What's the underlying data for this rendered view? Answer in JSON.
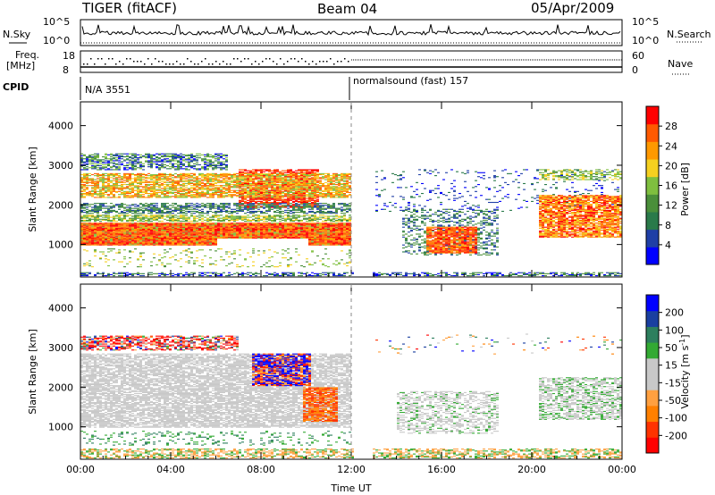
{
  "header": {
    "station": "TIGER (fitACF)",
    "beam": "Beam 04",
    "date": "05/Apr/2009"
  },
  "aux_panels": {
    "nsky_label": "N.Sky",
    "nsky_ticks": [
      "10^5",
      "10^0"
    ],
    "nsearch_label": "N.Search",
    "freq_label_1": "Freq.",
    "freq_label_2": "[MHz]",
    "freq_ticks": [
      "18",
      "8"
    ],
    "nave_label": "Nave",
    "nave_ticks": [
      "60",
      "0"
    ],
    "cpid_label": "CPID",
    "cpid_left": "N/A 3551",
    "cpid_right": "normalsound (fast) 157"
  },
  "colors": {
    "power_scale": [
      "#0000ff",
      "#1f3fa6",
      "#2a7a4a",
      "#4a8f3a",
      "#7fbf3f",
      "#f5d020",
      "#ff9900",
      "#ff5a00",
      "#ff0000"
    ],
    "velocity_scale": [
      "#ff0000",
      "#ff3300",
      "#ff8000",
      "#ffa040",
      "#c8c8c8",
      "#c8c8c8",
      "#33aa33",
      "#2d7f5e",
      "#1a3fa0",
      "#0000ff"
    ],
    "ground_scatter": "#c0c0c0"
  },
  "chart_data": [
    {
      "type": "heatmap",
      "title": "",
      "xlabel": "",
      "ylabel": "Slant Range [km]",
      "xlim": [
        0,
        24
      ],
      "ylim": [
        180,
        4600
      ],
      "x_ticks": [
        "00:00",
        "04:00",
        "08:00",
        "12:00",
        "16:00",
        "20:00",
        "00:00"
      ],
      "y_ticks": [
        1000,
        2000,
        3000,
        4000
      ],
      "colorbar_label": "Power [dB]",
      "colorbar_ticks": [
        "4",
        "8",
        "12",
        "16",
        "20",
        "24",
        "28"
      ],
      "colorbar_range": [
        0,
        30
      ]
    },
    {
      "type": "heatmap",
      "title": "",
      "xlabel": "Time UT",
      "ylabel": "Slant Range [km]",
      "xlim": [
        0,
        24
      ],
      "ylim": [
        180,
        4600
      ],
      "x_ticks": [
        "00:00",
        "04:00",
        "08:00",
        "12:00",
        "16:00",
        "20:00",
        "00:00"
      ],
      "y_ticks": [
        1000,
        2000,
        3000,
        4000
      ],
      "colorbar_label": "Velocity [m s",
      "colorbar_label_sup": "-1",
      "colorbar_label_end": "]",
      "colorbar_ticks": [
        "-200",
        "-100",
        "-50",
        "-15",
        "15",
        "50",
        "100",
        "200"
      ],
      "colorbar_range": [
        -250,
        250
      ]
    }
  ]
}
